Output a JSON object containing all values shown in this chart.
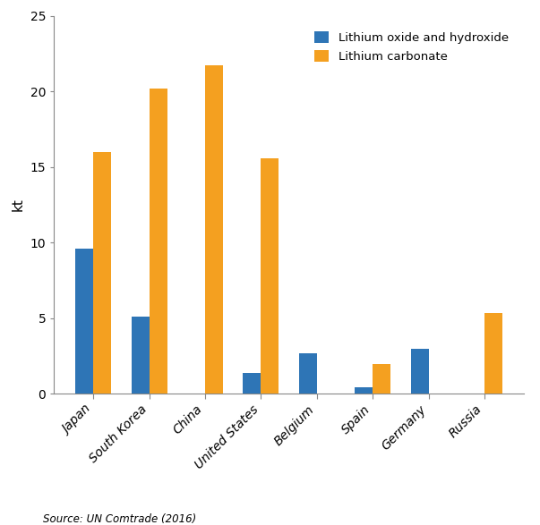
{
  "categories": [
    "Japan",
    "South Korea",
    "China",
    "United States",
    "Belgium",
    "Spain",
    "Germany",
    "Russia"
  ],
  "lithium_oxide_hydroxide": [
    9.6,
    5.1,
    0,
    1.35,
    2.7,
    0.45,
    2.95,
    0
  ],
  "lithium_carbonate": [
    16.0,
    20.2,
    21.7,
    15.6,
    0,
    1.95,
    0,
    5.35
  ],
  "color_oxide": "#2E75B6",
  "color_carbonate": "#F4A020",
  "ylabel": "kt",
  "ylim": [
    0,
    25
  ],
  "yticks": [
    0,
    5,
    10,
    15,
    20,
    25
  ],
  "legend_labels": [
    "Lithium oxide and hydroxide",
    "Lithium carbonate"
  ],
  "source_text": "Source: UN Comtrade (2016)",
  "bar_width": 0.32,
  "figsize": [
    6.03,
    5.87
  ],
  "dpi": 100
}
